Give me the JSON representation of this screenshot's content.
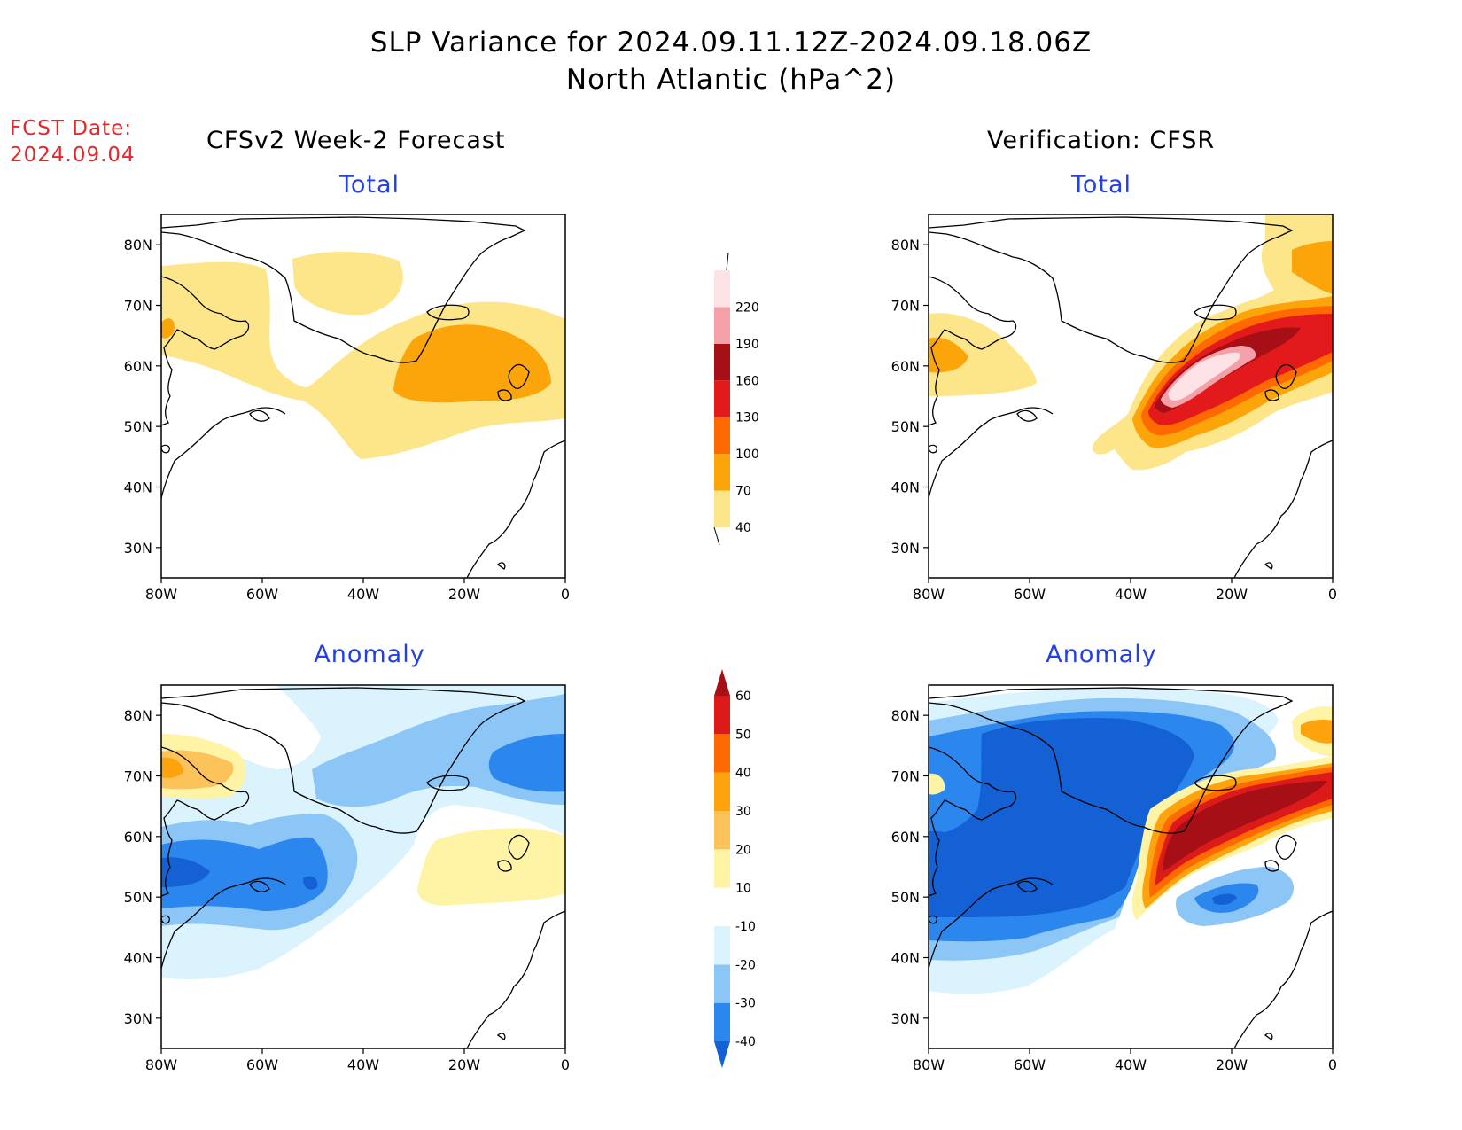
{
  "header": {
    "title_line1": "SLP Variance for 2024.09.11.12Z-2024.09.18.06Z",
    "title_line2": "North Atlantic (hPa^2)",
    "fcst_label": "FCST Date:",
    "fcst_date": "2024.09.04"
  },
  "columns": {
    "forecast": "CFSv2 Week-2 Forecast",
    "verification": "Verification: CFSR"
  },
  "panels": {
    "forecast_total": {
      "subtitle": "Total"
    },
    "forecast_anomaly": {
      "subtitle": "Anomaly"
    },
    "verification_total": {
      "subtitle": "Total"
    },
    "verification_anomaly": {
      "subtitle": "Anomaly"
    }
  },
  "axes": {
    "lat_ticks": [
      "80N",
      "70N",
      "60N",
      "50N",
      "40N",
      "30N"
    ],
    "lat_values": [
      80,
      70,
      60,
      50,
      40,
      30
    ],
    "lon_ticks": [
      "80W",
      "60W",
      "40W",
      "20W",
      "0"
    ],
    "lon_values": [
      -80,
      -60,
      -40,
      -20,
      0
    ],
    "lon_range": [
      -80,
      0
    ],
    "lat_range": [
      25,
      85
    ]
  },
  "colorbars": {
    "total": {
      "levels": [
        "40",
        "70",
        "100",
        "130",
        "160",
        "190",
        "220"
      ],
      "colors": [
        "#fde68a",
        "#fca50a",
        "#ff6a00",
        "#e31a1c",
        "#a50f15",
        "#f4a0a8",
        "#fde2e6"
      ]
    },
    "anomaly": {
      "levels": [
        "-40",
        "-30",
        "-20",
        "-10",
        "10",
        "20",
        "30",
        "40",
        "50",
        "60"
      ],
      "colors": [
        "#1461d6",
        "#2b86ee",
        "#8cc6f7",
        "#dbf3fd",
        "#ffffff",
        "#fff3a6",
        "#fcc35a",
        "#fca30d",
        "#ff6a00",
        "#dc1a1a",
        "#a50f15"
      ]
    }
  }
}
